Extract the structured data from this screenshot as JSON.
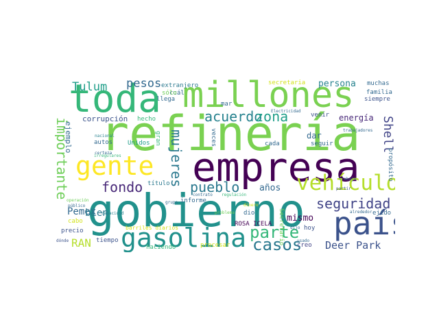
{
  "cloud": {
    "words": [
      {
        "text": "refinería",
        "color": "#7ad151"
      },
      {
        "text": "empresa",
        "color": "#440154"
      },
      {
        "text": "gobierno",
        "color": "#21918c"
      },
      {
        "text": "millones",
        "color": "#7ad151"
      },
      {
        "text": "toda",
        "color": "#35b779"
      },
      {
        "text": "gente",
        "color": "#fde725"
      },
      {
        "text": "país",
        "color": "#3b528b"
      },
      {
        "text": "gasolina",
        "color": "#21918c"
      },
      {
        "text": "vehículo",
        "color": "#b5de2b"
      },
      {
        "text": "acuerdo",
        "color": "#26828e"
      },
      {
        "text": "zona",
        "color": "#1f9e89"
      },
      {
        "text": "parte",
        "color": "#35b779"
      },
      {
        "text": "casos",
        "color": "#2a788e"
      },
      {
        "text": "fondo",
        "color": "#482878"
      },
      {
        "text": "pueblo",
        "color": "#2a788e"
      },
      {
        "text": "seguridad",
        "color": "#414487"
      },
      {
        "text": "mujeres",
        "color": "#2a788e"
      },
      {
        "text": "importante",
        "color": "#6ece58"
      },
      {
        "text": "pesos",
        "color": "#31688e"
      },
      {
        "text": "Tulum",
        "color": "#1f9e89"
      },
      {
        "text": "Shell",
        "color": "#414487"
      },
      {
        "text": "Deer Park",
        "color": "#3b528b"
      },
      {
        "text": "RAN",
        "color": "#b5de2b"
      },
      {
        "text": "Pemex",
        "color": "#31688e"
      },
      {
        "text": "bien",
        "color": "#2a788e"
      },
      {
        "text": "años",
        "color": "#31688e"
      },
      {
        "text": "mismo",
        "color": "#440154"
      },
      {
        "text": "persona",
        "color": "#26828e"
      },
      {
        "text": "energía",
        "color": "#482878"
      },
      {
        "text": "dar",
        "color": "#31688e"
      },
      {
        "text": "ejemplo",
        "color": "#31688e"
      },
      {
        "text": "corrupción",
        "color": "#3b528b"
      },
      {
        "text": "extranjero",
        "color": "#2a788e"
      },
      {
        "text": "cuál",
        "color": "#31688e"
      },
      {
        "text": "sólo",
        "color": "#6ece58"
      },
      {
        "text": "llega",
        "color": "#31688e"
      },
      {
        "text": "hecho",
        "color": "#35b779"
      },
      {
        "text": "autos",
        "color": "#31688e"
      },
      {
        "text": "Unidos",
        "color": "#1f9e89"
      },
      {
        "text": "gran",
        "color": "#35b779"
      },
      {
        "text": "informe",
        "color": "#31688e"
      },
      {
        "text": "título",
        "color": "#2a788e"
      },
      {
        "text": "mar",
        "color": "#31688e"
      },
      {
        "text": "veces",
        "color": "#31688e"
      },
      {
        "text": "cada",
        "color": "#31688e"
      },
      {
        "text": "seguir",
        "color": "#31688e"
      },
      {
        "text": "venir",
        "color": "#3b528b"
      },
      {
        "text": "secretaria",
        "color": "#d2e21b"
      },
      {
        "text": "muchas",
        "color": "#31688e"
      },
      {
        "text": "familia",
        "color": "#31688e"
      },
      {
        "text": "siempre",
        "color": "#3b528b"
      },
      {
        "text": "propósito",
        "color": "#31688e"
      },
      {
        "text": "ejido",
        "color": "#31688e"
      },
      {
        "text": "hoy",
        "color": "#3b528b"
      },
      {
        "text": "creo",
        "color": "#414487"
      },
      {
        "text": "dio",
        "color": "#31688e"
      },
      {
        "text": "ROSA ICELA",
        "color": "#440154"
      },
      {
        "text": "Secretario",
        "color": "#6ece58"
      },
      {
        "text": "barriles diarios",
        "color": "#d2e21b"
      },
      {
        "text": "cabo",
        "color": "#d2e21b"
      },
      {
        "text": "precio",
        "color": "#3b528b"
      },
      {
        "text": "tiempo",
        "color": "#3b528b"
      },
      {
        "text": "haciendo",
        "color": "#35b779"
      },
      {
        "text": "procesar",
        "color": "#d2e21b"
      },
      {
        "text": "nacional",
        "color": "#26828e"
      },
      {
        "text": "irregulares",
        "color": "#35b779"
      },
      {
        "text": "certeza",
        "color": "#31688e"
      },
      {
        "text": "operación",
        "color": "#6ece58"
      },
      {
        "text": "público",
        "color": "#31688e"
      },
      {
        "text": "capacidad",
        "color": "#26828e"
      },
      {
        "text": "dónde",
        "color": "#3b528b"
      },
      {
        "text": "Electricidad",
        "color": "#31688e"
      },
      {
        "text": "trabajadores",
        "color": "#31688e"
      },
      {
        "text": "grupo",
        "color": "#31688e"
      },
      {
        "text": "contrato",
        "color": "#31688e"
      },
      {
        "text": "problema",
        "color": "#6ece58"
      },
      {
        "text": "regulación",
        "color": "#35b779"
      },
      {
        "text": "dinero",
        "color": "#d2e21b"
      },
      {
        "text": "trabajo",
        "color": "#31688e"
      },
      {
        "text": "alrededor",
        "color": "#31688e"
      },
      {
        "text": "partir",
        "color": "#3b528b"
      },
      {
        "text": "usado",
        "color": "#31688e"
      },
      {
        "text": "dijo",
        "color": "#31688e"
      }
    ]
  }
}
